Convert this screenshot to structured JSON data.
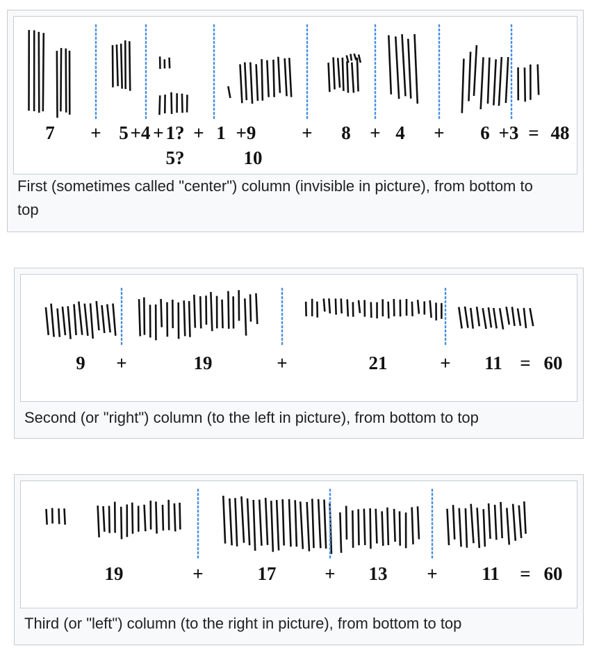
{
  "figures": [
    {
      "labels": [
        "7",
        "+",
        "5",
        "+4",
        "+",
        "1?",
        "+",
        "1",
        "+9",
        "+",
        "8",
        "+",
        "4",
        "+",
        "6",
        "+3",
        "=",
        "48"
      ],
      "second_line": [
        "5?",
        "10"
      ],
      "caption": "First (sometimes called \"center\") column (invisible in picture), from bottom to top"
    },
    {
      "labels": [
        "9",
        "+",
        "19",
        "+",
        "21",
        "+",
        "11",
        "=",
        "60"
      ],
      "caption": "Second (or \"right\") column (to the left in picture), from bottom to top"
    },
    {
      "labels": [
        "19",
        "+",
        "17",
        "+",
        "13",
        "+",
        "11",
        "=",
        "60"
      ],
      "caption": "Third (or \"left\") column (to the right in picture), from bottom to top"
    }
  ],
  "colors": {
    "divider": "#4a90e2",
    "stroke": "#111111",
    "frame": "#c8ccd1",
    "thumb_bg": "#f8f9fa"
  }
}
